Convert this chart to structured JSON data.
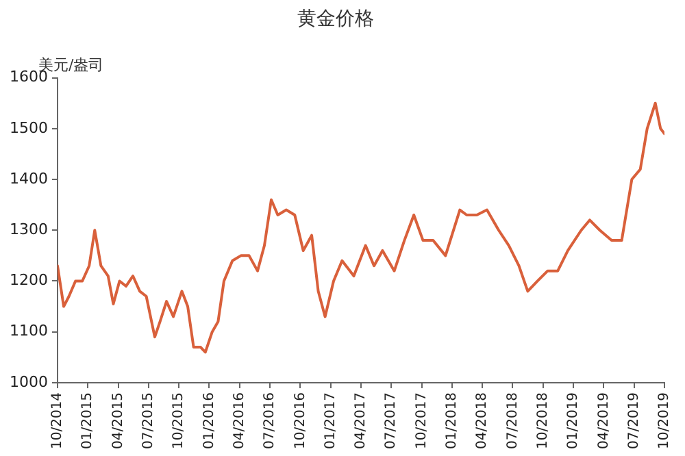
{
  "chart_data": {
    "type": "line",
    "title": "黄金价格",
    "ylabel": "美元/盎司",
    "x": [
      "2014-10-01",
      "2014-10-20",
      "2014-11-05",
      "2014-11-25",
      "2014-12-15",
      "2015-01-05",
      "2015-01-22",
      "2015-02-10",
      "2015-03-01",
      "2015-03-17",
      "2015-04-05",
      "2015-04-25",
      "2015-05-15",
      "2015-06-05",
      "2015-06-25",
      "2015-07-20",
      "2015-08-05",
      "2015-08-25",
      "2015-09-15",
      "2015-10-10",
      "2015-10-28",
      "2015-11-15",
      "2015-12-05",
      "2015-12-20",
      "2016-01-10",
      "2016-01-28",
      "2016-02-15",
      "2016-03-10",
      "2016-04-05",
      "2016-04-30",
      "2016-05-25",
      "2016-06-15",
      "2016-07-05",
      "2016-07-25",
      "2016-08-20",
      "2016-09-15",
      "2016-10-10",
      "2016-11-05",
      "2016-11-25",
      "2016-12-15",
      "2017-01-10",
      "2017-02-05",
      "2017-03-10",
      "2017-04-15",
      "2017-05-10",
      "2017-06-05",
      "2017-07-10",
      "2017-08-10",
      "2017-09-08",
      "2017-10-05",
      "2017-11-05",
      "2017-12-12",
      "2018-01-25",
      "2018-02-15",
      "2018-03-15",
      "2018-04-15",
      "2018-05-20",
      "2018-06-20",
      "2018-07-20",
      "2018-08-16",
      "2018-09-15",
      "2018-10-15",
      "2018-11-15",
      "2018-12-15",
      "2019-01-25",
      "2019-02-20",
      "2019-03-20",
      "2019-04-25",
      "2019-05-25",
      "2019-06-25",
      "2019-07-20",
      "2019-08-10",
      "2019-09-04",
      "2019-09-20",
      "2019-10-01"
    ],
    "series": [
      {
        "color": "#d9603b",
        "values": [
          1230,
          1150,
          1170,
          1200,
          1200,
          1230,
          1300,
          1230,
          1210,
          1155,
          1200,
          1190,
          1210,
          1180,
          1170,
          1090,
          1120,
          1160,
          1130,
          1180,
          1150,
          1070,
          1070,
          1060,
          1100,
          1120,
          1200,
          1240,
          1250,
          1250,
          1220,
          1270,
          1360,
          1330,
          1340,
          1330,
          1260,
          1290,
          1180,
          1130,
          1200,
          1240,
          1210,
          1270,
          1230,
          1260,
          1220,
          1280,
          1330,
          1280,
          1280,
          1250,
          1340,
          1330,
          1330,
          1340,
          1300,
          1270,
          1230,
          1180,
          1200,
          1220,
          1220,
          1260,
          1300,
          1320,
          1300,
          1280,
          1280,
          1400,
          1420,
          1500,
          1550,
          1500,
          1490
        ]
      }
    ],
    "xlim": [
      "2014-10-01",
      "2019-10-01"
    ],
    "xticks": [
      {
        "value": "2014-10-01",
        "label": "10/2014"
      },
      {
        "value": "2015-01-01",
        "label": "01/2015"
      },
      {
        "value": "2015-04-01",
        "label": "04/2015"
      },
      {
        "value": "2015-07-01",
        "label": "07/2015"
      },
      {
        "value": "2015-10-01",
        "label": "10/2015"
      },
      {
        "value": "2016-01-01",
        "label": "01/2016"
      },
      {
        "value": "2016-04-01",
        "label": "04/2016"
      },
      {
        "value": "2016-07-01",
        "label": "07/2016"
      },
      {
        "value": "2016-10-01",
        "label": "10/2016"
      },
      {
        "value": "2017-01-01",
        "label": "01/2017"
      },
      {
        "value": "2017-04-01",
        "label": "04/2017"
      },
      {
        "value": "2017-07-01",
        "label": "07/2017"
      },
      {
        "value": "2017-10-01",
        "label": "10/2017"
      },
      {
        "value": "2018-01-01",
        "label": "01/2018"
      },
      {
        "value": "2018-04-01",
        "label": "04/2018"
      },
      {
        "value": "2018-07-01",
        "label": "07/2018"
      },
      {
        "value": "2018-10-01",
        "label": "10/2018"
      },
      {
        "value": "2019-01-01",
        "label": "01/2019"
      },
      {
        "value": "2019-04-01",
        "label": "04/2019"
      },
      {
        "value": "2019-07-01",
        "label": "07/2019"
      },
      {
        "value": "2019-10-01",
        "label": "10/2019"
      }
    ],
    "ylim": [
      1000,
      1600
    ],
    "yticks": [
      1000,
      1100,
      1200,
      1300,
      1400,
      1500,
      1600
    ],
    "grid": false,
    "legend": false,
    "marker": "none",
    "line_style": "solid"
  }
}
